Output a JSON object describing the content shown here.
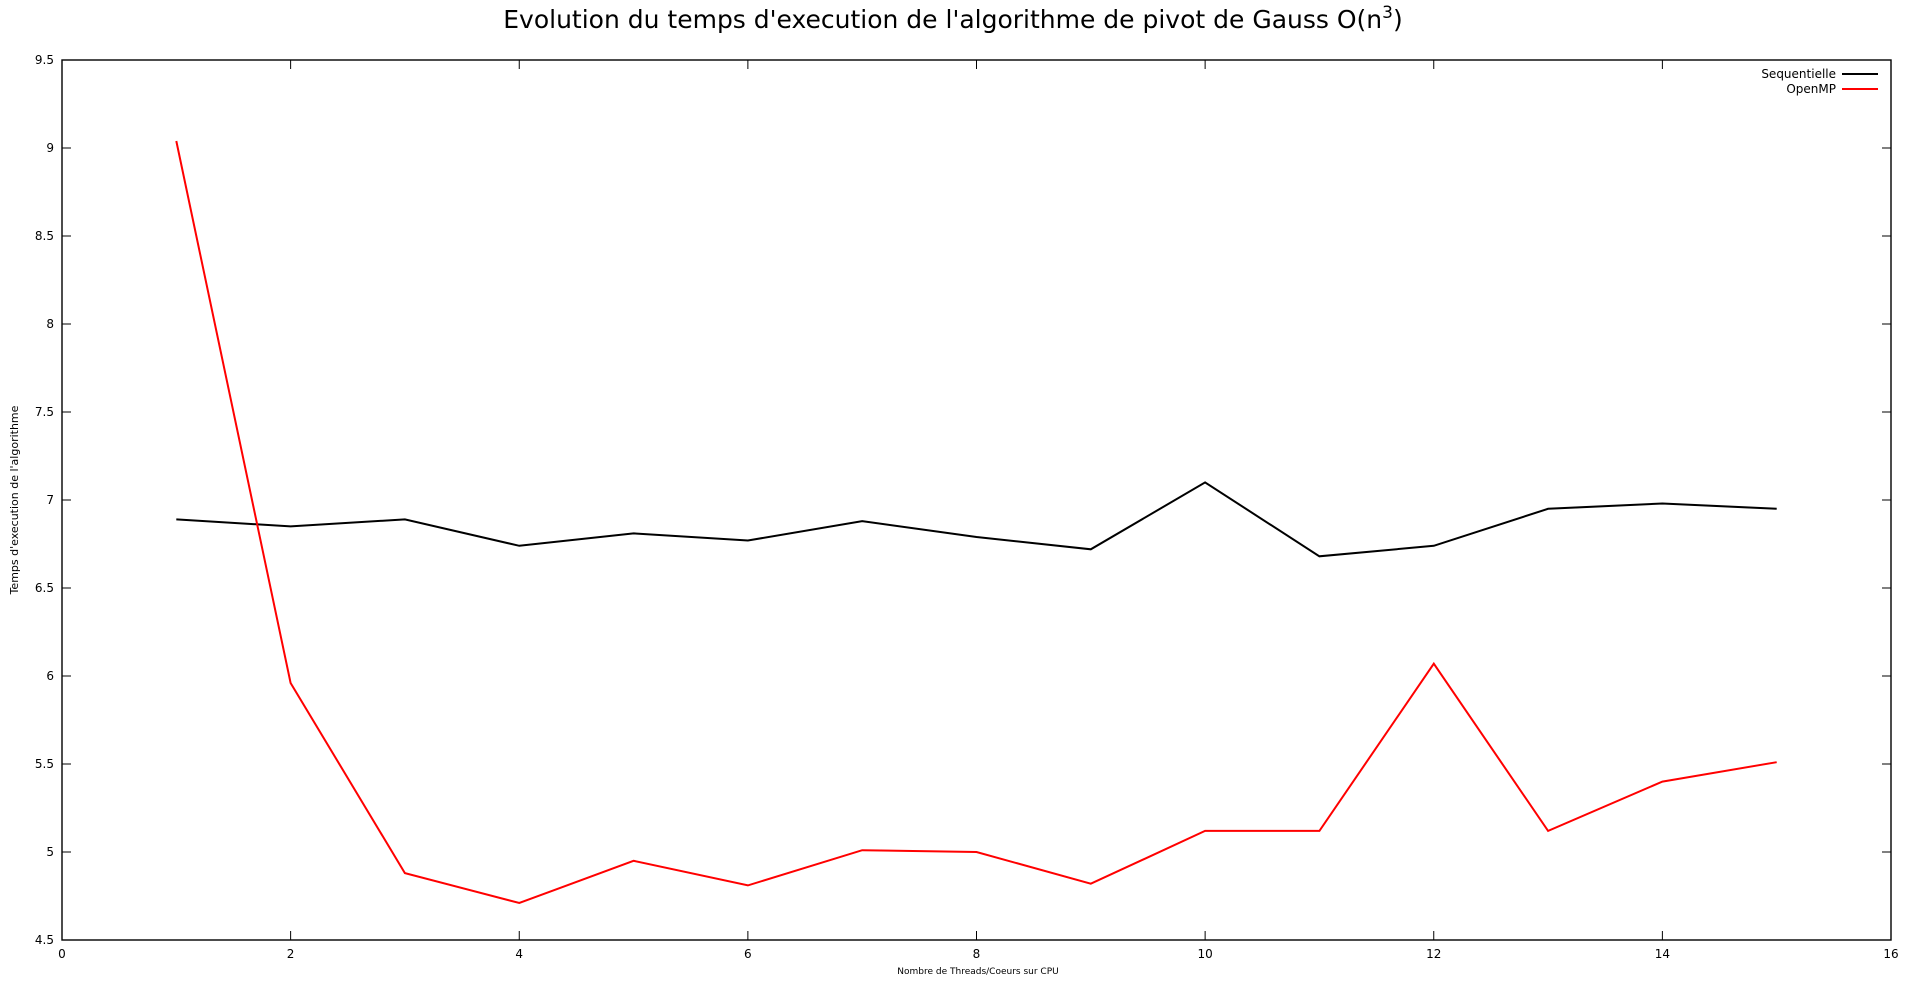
{
  "chart_data": {
    "type": "line",
    "title": "Evolution du temps d'execution de l'algorithme de pivot de Gauss O(n",
    "title_superscript": "3",
    "title_suffix": ")",
    "xlabel": "Nombre de Threads/Coeurs sur CPU",
    "ylabel": "Temps d'execution de l'algorithme",
    "xlim": [
      0,
      16
    ],
    "ylim": [
      4.5,
      9.5
    ],
    "x_ticks": [
      0,
      2,
      4,
      6,
      8,
      10,
      12,
      14,
      16
    ],
    "y_ticks": [
      4.5,
      5,
      5.5,
      6,
      6.5,
      7,
      7.5,
      8,
      8.5,
      9,
      9.5
    ],
    "x_tick_labels": [
      "0",
      "2",
      "4",
      "6",
      "8",
      "10",
      "12",
      "14",
      "16"
    ],
    "y_tick_labels": [
      "4.5",
      "5",
      "5.5",
      "6",
      "6.5",
      "7",
      "7.5",
      "8",
      "8.5",
      "9",
      "9.5"
    ],
    "grid": false,
    "legend_position": "top-right",
    "x": [
      1,
      2,
      3,
      4,
      5,
      6,
      7,
      8,
      9,
      10,
      11,
      12,
      13,
      14,
      15
    ],
    "series": [
      {
        "name": "Sequentielle",
        "color": "#000000",
        "values": [
          6.89,
          6.85,
          6.89,
          6.74,
          6.81,
          6.77,
          6.88,
          6.79,
          6.72,
          7.1,
          6.68,
          6.74,
          6.95,
          6.98,
          6.95
        ]
      },
      {
        "name": "OpenMP",
        "color": "#ff0000",
        "values": [
          9.04,
          5.96,
          4.88,
          4.71,
          4.95,
          4.81,
          5.01,
          5.0,
          4.82,
          5.12,
          5.12,
          6.07,
          5.12,
          5.4,
          5.51
        ]
      }
    ]
  }
}
